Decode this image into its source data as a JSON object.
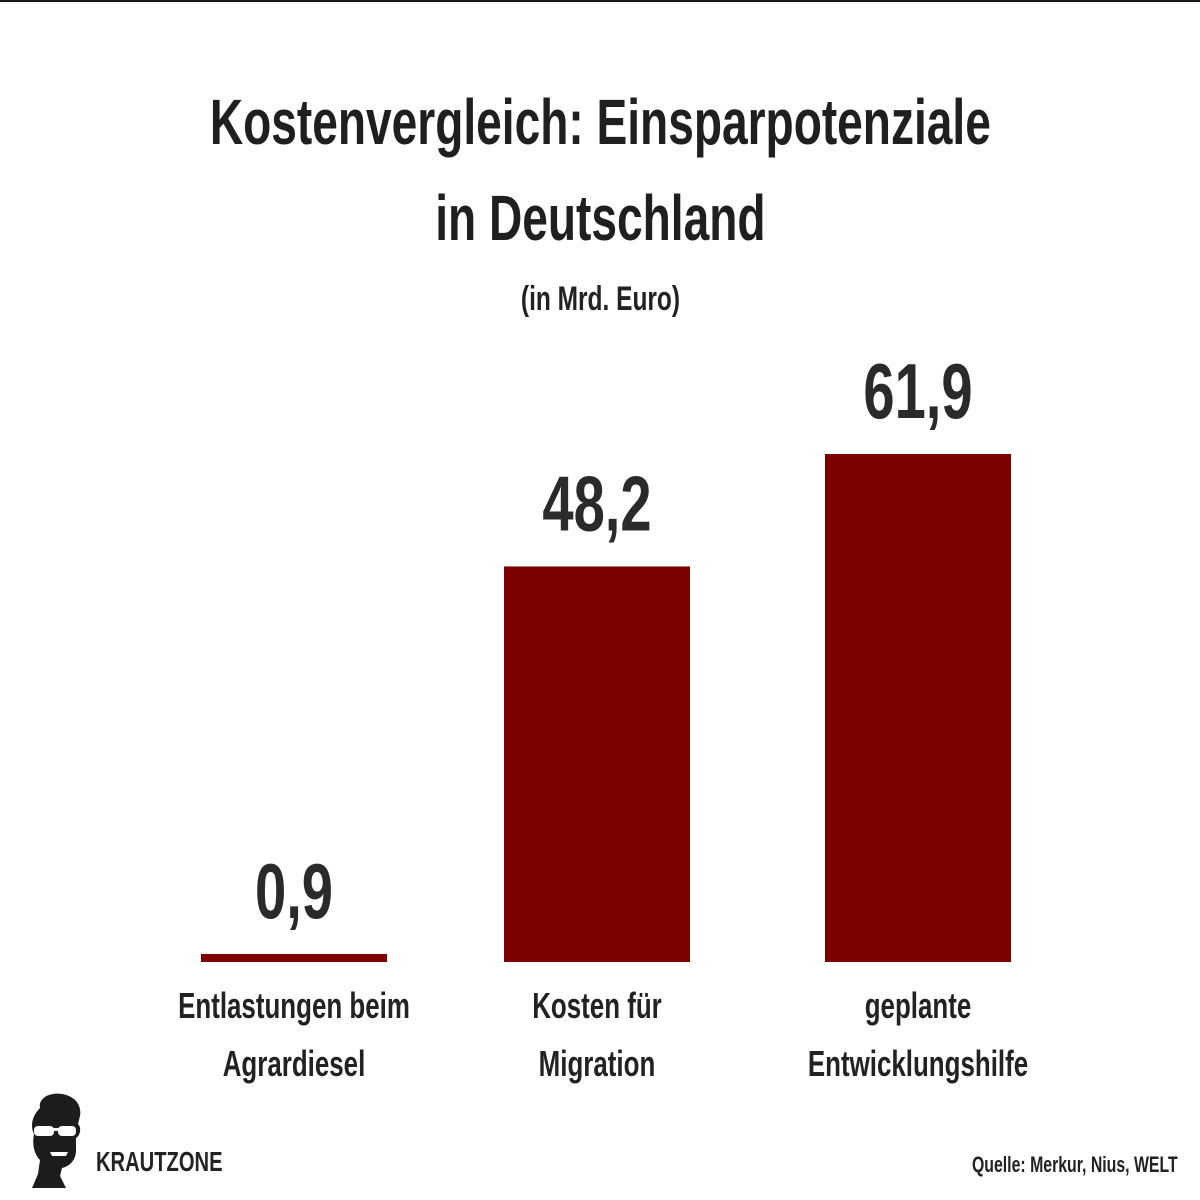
{
  "title_line1": "Kostenvergleich: Einsparpotenziale",
  "title_line2": "in Deutschland",
  "subtitle": "(in Mrd. Euro)",
  "brand": "KRAUTZONE",
  "source": "Quelle: Merkur, Nius, WELT",
  "colors": {
    "bar": "#7d0000",
    "text": "#222222",
    "background": "#ffffff"
  },
  "chart_data": {
    "type": "bar",
    "title": "Kostenvergleich: Einsparpotenziale in Deutschland",
    "subtitle": "(in Mrd. Euro)",
    "categories": [
      [
        "Entlastungen beim",
        "Agrardiesel"
      ],
      [
        "Kosten für",
        "Migration"
      ],
      [
        "geplante",
        "Entwicklungshilfe"
      ]
    ],
    "values": [
      0.9,
      48.2,
      61.9
    ],
    "value_labels": [
      "0,9",
      "48,2",
      "61,9"
    ],
    "grid": false,
    "legend": "none"
  }
}
